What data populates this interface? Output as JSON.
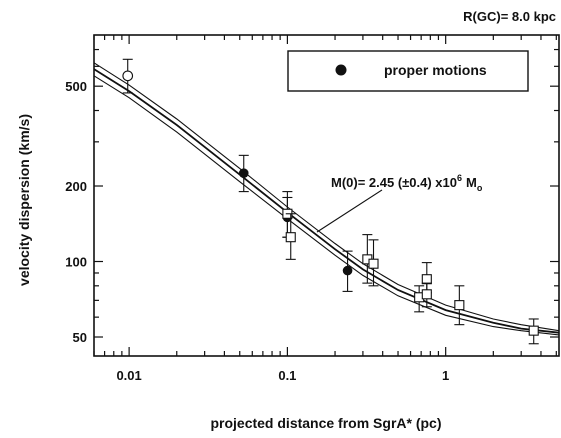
{
  "chart_data": {
    "type": "scatter",
    "header": "R(GC)= 8.0 kpc",
    "title": "",
    "xlabel": "projected distance from SgrA* (pc)",
    "ylabel": "velocity dispersion (km/s)",
    "xscale": "log",
    "yscale": "log",
    "xlim": [
      0.006,
      5.2
    ],
    "ylim": [
      42,
      800
    ],
    "grid": false,
    "legend": {
      "placement": "top-right",
      "entries": [
        {
          "label": "proper motions",
          "marker": "filled-circle"
        }
      ]
    },
    "x_ticks": [
      {
        "value": 0.01,
        "label": "0.01"
      },
      {
        "value": 0.1,
        "label": "0.1"
      },
      {
        "value": 1,
        "label": "1"
      }
    ],
    "y_ticks": [
      {
        "value": 50,
        "label": "50"
      },
      {
        "value": 100,
        "label": "100"
      },
      {
        "value": 200,
        "label": "200"
      },
      {
        "value": 500,
        "label": "500"
      }
    ],
    "annotation": {
      "text": "M(0)= 2.45 (±0.4) x10",
      "exponent": "6",
      "subscript": "o",
      "unit": "M"
    },
    "series": [
      {
        "marker": "filled-circle",
        "points": [
          {
            "x": 0.053,
            "y": 225,
            "lo": 190,
            "hi": 265
          },
          {
            "x": 0.1,
            "y": 150,
            "lo": 125,
            "hi": 180
          },
          {
            "x": 0.24,
            "y": 92,
            "lo": 76,
            "hi": 110
          }
        ]
      },
      {
        "marker": "open-circle",
        "points": [
          {
            "x": 0.0098,
            "y": 550,
            "lo": 470,
            "hi": 640
          }
        ]
      },
      {
        "marker": "open-square",
        "points": [
          {
            "x": 0.1,
            "y": 155,
            "lo": 125,
            "hi": 190
          },
          {
            "x": 0.105,
            "y": 125,
            "lo": 102,
            "hi": 155
          },
          {
            "x": 0.32,
            "y": 102,
            "lo": 82,
            "hi": 128
          },
          {
            "x": 0.35,
            "y": 98,
            "lo": 80,
            "hi": 122
          },
          {
            "x": 0.68,
            "y": 72,
            "lo": 63,
            "hi": 80
          },
          {
            "x": 0.76,
            "y": 85,
            "lo": 75,
            "hi": 99
          },
          {
            "x": 0.76,
            "y": 74,
            "lo": 66,
            "hi": 82
          },
          {
            "x": 1.22,
            "y": 67,
            "lo": 56,
            "hi": 80
          },
          {
            "x": 3.6,
            "y": 53,
            "lo": 47,
            "hi": 59
          }
        ]
      }
    ],
    "model_curves": [
      {
        "points": [
          [
            0.006,
            620
          ],
          [
            0.01,
            505
          ],
          [
            0.02,
            370
          ],
          [
            0.05,
            235
          ],
          [
            0.1,
            165
          ],
          [
            0.2,
            118
          ],
          [
            0.3,
            98
          ],
          [
            0.5,
            81
          ],
          [
            1,
            67
          ],
          [
            2,
            59
          ],
          [
            3,
            56
          ],
          [
            5.2,
            53
          ]
        ]
      },
      {
        "points": [
          [
            0.006,
            585
          ],
          [
            0.01,
            478
          ],
          [
            0.02,
            350
          ],
          [
            0.05,
            222
          ],
          [
            0.1,
            157
          ],
          [
            0.2,
            112
          ],
          [
            0.3,
            93
          ],
          [
            0.5,
            77
          ],
          [
            1,
            64
          ],
          [
            2,
            57
          ],
          [
            3,
            54
          ],
          [
            5.2,
            52
          ]
        ]
      },
      {
        "points": [
          [
            0.006,
            550
          ],
          [
            0.01,
            450
          ],
          [
            0.02,
            328
          ],
          [
            0.05,
            208
          ],
          [
            0.1,
            148
          ],
          [
            0.2,
            106
          ],
          [
            0.3,
            88
          ],
          [
            0.5,
            73
          ],
          [
            1,
            61
          ],
          [
            2,
            55
          ],
          [
            3,
            53
          ],
          [
            5.2,
            51
          ]
        ]
      }
    ]
  }
}
